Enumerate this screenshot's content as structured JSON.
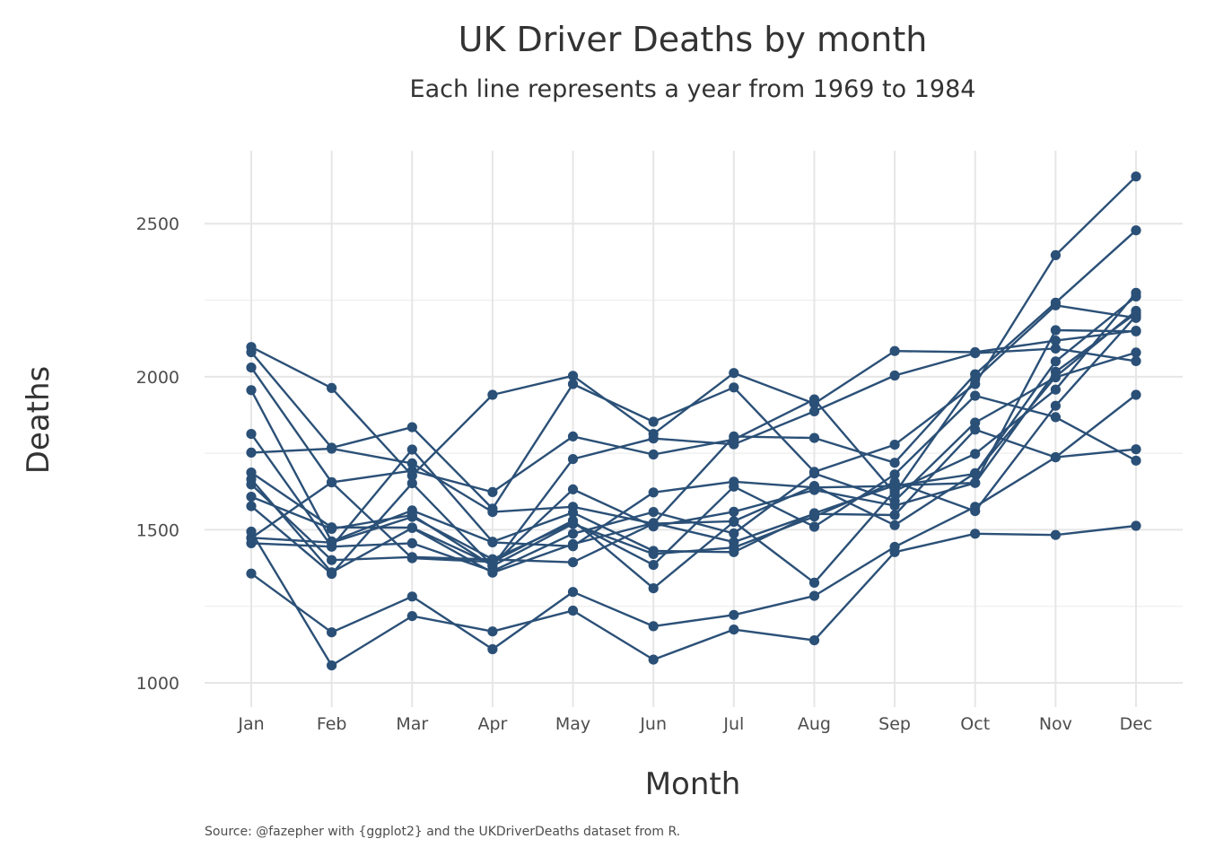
{
  "chart_data": {
    "type": "line",
    "title": "UK Driver Deaths by month",
    "subtitle": "Each line represents a year from 1969 to 1984",
    "xlabel": "Month",
    "ylabel": "Deaths",
    "caption": "Source: @fazepher with {ggplot2} and the UKDriverDeaths dataset from R.",
    "categories": [
      "Jan",
      "Feb",
      "Mar",
      "Apr",
      "May",
      "Jun",
      "Jul",
      "Aug",
      "Sep",
      "Oct",
      "Nov",
      "Dec"
    ],
    "ylim": [
      1000,
      2700
    ],
    "yticks": [
      1000,
      1500,
      2000,
      2500
    ],
    "grid": true,
    "legend": "none",
    "color": "#2b5077",
    "series": [
      {
        "values": [
          1687,
          1508,
          1507,
          1385,
          1632,
          1511,
          1559,
          1630,
          1579,
          1653,
          2152,
          2148
        ]
      },
      {
        "values": [
          1752,
          1765,
          1717,
          1558,
          1575,
          1520,
          1805,
          1800,
          1719,
          2008,
          2242,
          2478
        ]
      },
      {
        "values": [
          2030,
          1655,
          1693,
          1623,
          1805,
          1746,
          1795,
          1926,
          1619,
          1992,
          2233,
          2192
        ]
      },
      {
        "values": [
          2080,
          1768,
          1835,
          1569,
          1976,
          1853,
          1965,
          1689,
          1778,
          1976,
          2397,
          2654
        ]
      },
      {
        "values": [
          2097,
          1963,
          1677,
          1941,
          2003,
          1813,
          2012,
          1912,
          2084,
          2080,
          2118,
          2150
        ]
      },
      {
        "values": [
          1608,
          1503,
          1548,
          1382,
          1731,
          1798,
          1779,
          1887,
          2004,
          2077,
          2092,
          2051
        ]
      },
      {
        "values": [
          1577,
          1356,
          1652,
          1382,
          1519,
          1421,
          1442,
          1543,
          1656,
          1561,
          1905,
          2199
        ]
      },
      {
        "values": [
          1473,
          1655,
          1407,
          1395,
          1530,
          1309,
          1526,
          1327,
          1627,
          1748,
          1958,
          2274
        ]
      },
      {
        "values": [
          1648,
          1401,
          1411,
          1403,
          1394,
          1520,
          1528,
          1643,
          1515,
          1685,
          2000,
          2215
        ]
      },
      {
        "values": [
          1956,
          1462,
          1563,
          1459,
          1446,
          1622,
          1657,
          1638,
          1643,
          1683,
          2050,
          2262
        ]
      },
      {
        "values": [
          1813,
          1445,
          1762,
          1461,
          1556,
          1431,
          1427,
          1554,
          1645,
          1653,
          2016,
          2207
        ]
      },
      {
        "values": [
          1665,
          1361,
          1506,
          1360,
          1453,
          1522,
          1460,
          1552,
          1548,
          1827,
          1737,
          1941
        ]
      },
      {
        "values": [
          1474,
          1458,
          1542,
          1404,
          1522,
          1385,
          1641,
          1510,
          1681,
          1938,
          1868,
          1726
        ]
      },
      {
        "values": [
          1456,
          1445,
          1456,
          1365,
          1487,
          1558,
          1488,
          1684,
          1594,
          1850,
          1998,
          2079
        ]
      },
      {
        "values": [
          1494,
          1057,
          1218,
          1168,
          1236,
          1076,
          1174,
          1139,
          1427,
          1487,
          1483,
          1513
        ]
      },
      {
        "values": [
          1357,
          1165,
          1282,
          1110,
          1297,
          1185,
          1222,
          1284,
          1444,
          1575,
          1737,
          1763
        ]
      }
    ]
  }
}
